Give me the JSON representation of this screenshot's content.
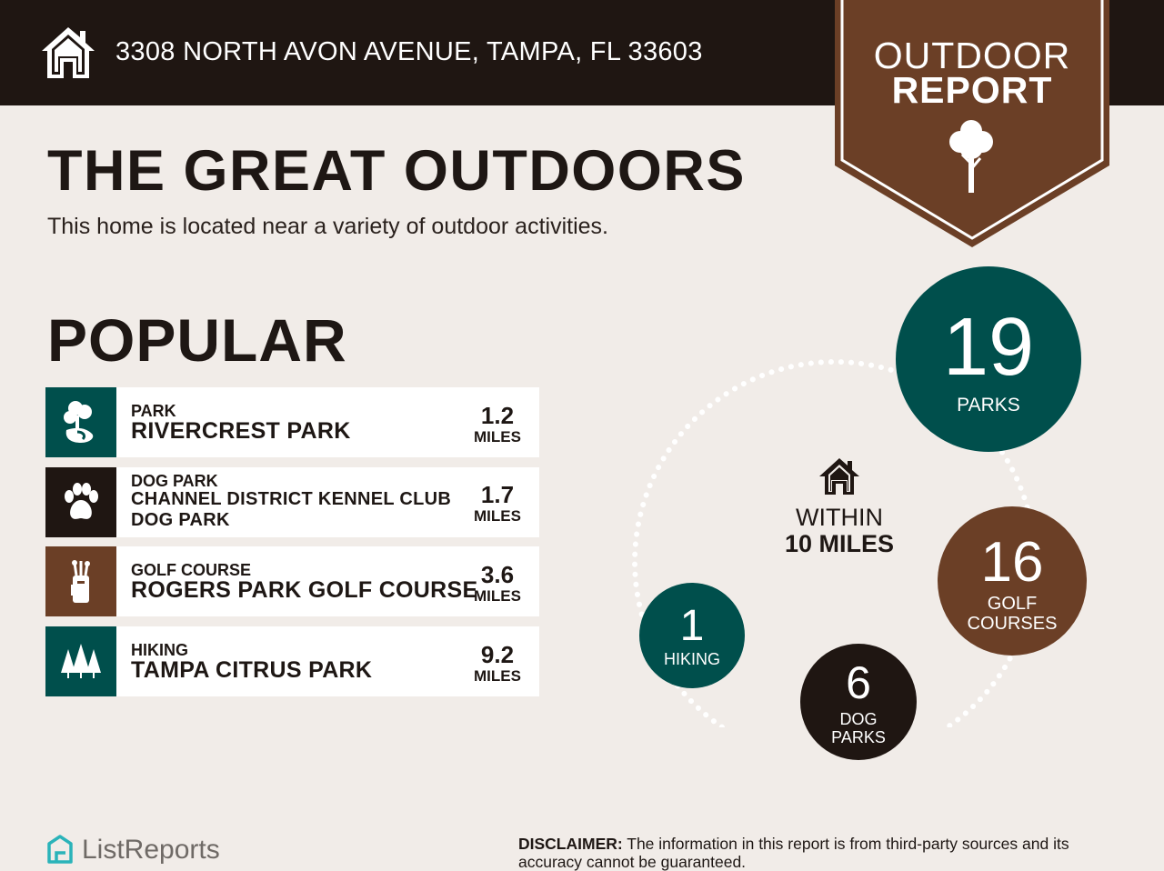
{
  "header": {
    "address": "3308 NORTH AVON AVENUE, TAMPA, FL 33603",
    "banner_line1": "OUTDOOR",
    "banner_line2": "REPORT"
  },
  "title": "THE GREAT OUTDOORS",
  "subtitle": "This home is located near a variety of outdoor activities.",
  "popular": {
    "heading": "POPULAR",
    "items": [
      {
        "category": "PARK",
        "name": "RIVERCREST PARK",
        "distance": "1.2",
        "unit": "MILES",
        "icon": "park-icon",
        "color": "#004f4c"
      },
      {
        "category": "DOG PARK",
        "name": "CHANNEL DISTRICT KENNEL CLUB DOG PARK",
        "distance": "1.7",
        "unit": "MILES",
        "icon": "paw-icon",
        "color": "#1f1612"
      },
      {
        "category": "GOLF COURSE",
        "name": "ROGERS PARK GOLF COURSE",
        "distance": "3.6",
        "unit": "MILES",
        "icon": "golf-bag-icon",
        "color": "#6b3f26"
      },
      {
        "category": "HIKING",
        "name": "TAMPA CITRUS PARK",
        "distance": "9.2",
        "unit": "MILES",
        "icon": "pine-trees-icon",
        "color": "#004f4c"
      }
    ]
  },
  "radius": {
    "within_line1": "WITHIN",
    "within_line2": "10 MILES",
    "counts": [
      {
        "value": "19",
        "label": "PARKS",
        "color": "#004f4c"
      },
      {
        "value": "16",
        "label_line1": "GOLF",
        "label_line2": "COURSES",
        "color": "#6b3f26"
      },
      {
        "value": "6",
        "label_line1": "DOG",
        "label_line2": "PARKS",
        "color": "#1f1612"
      },
      {
        "value": "1",
        "label": "HIKING",
        "color": "#004f4c"
      }
    ]
  },
  "footer": {
    "brand": "ListReports",
    "disclaimer_label": "DISCLAIMER:",
    "disclaimer_text": " The information in this report is from third-party sources and its accuracy cannot be guaranteed."
  },
  "colors": {
    "background": "#f1ece8",
    "header": "#1f1612",
    "teal": "#004f4c",
    "brown": "#6b3f26",
    "logo_teal": "#2ab3b9"
  }
}
